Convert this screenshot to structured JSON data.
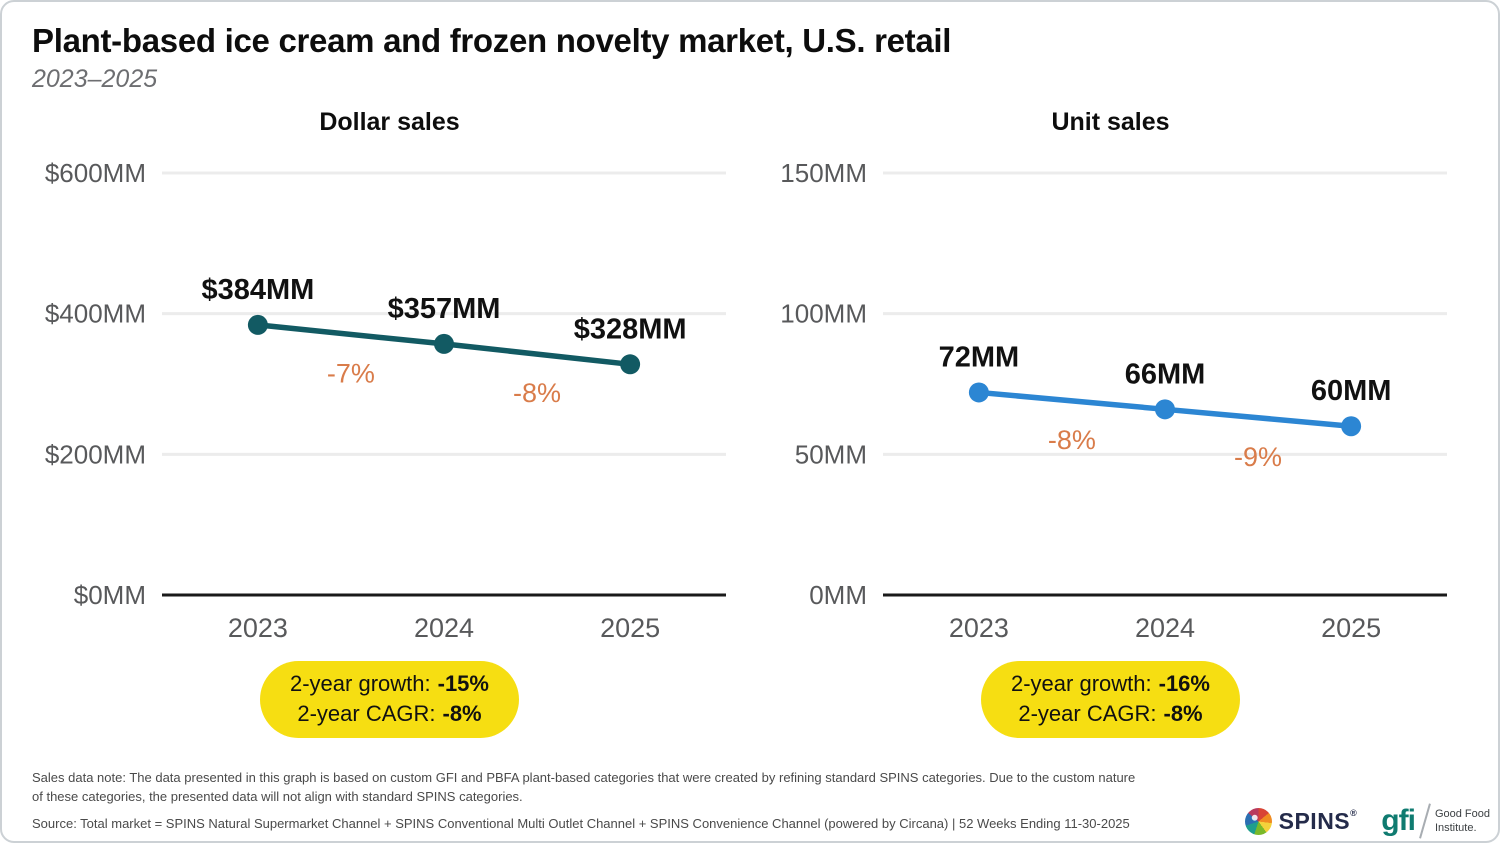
{
  "header": {
    "title": "Plant-based ice cream and frozen novelty market, U.S. retail",
    "subtitle": "2023–2025"
  },
  "colors": {
    "teal_line": "#125A63",
    "blue_line": "#2C86D3",
    "pct_orange": "#D97C4A",
    "badge_yellow": "#F6DE12",
    "axis": "#1a1a1a",
    "grid": "#ececec",
    "tick_text": "#58595b",
    "data_label": "#111111"
  },
  "chart_data": [
    {
      "type": "line",
      "title": "Dollar sales",
      "x": [
        "2023",
        "2024",
        "2025"
      ],
      "values": [
        384,
        357,
        328
      ],
      "point_labels": [
        "$384MM",
        "$357MM",
        "$328MM"
      ],
      "segment_change_labels": [
        "-7%",
        "-8%"
      ],
      "xlabel": "",
      "ylabel": "",
      "ylim": [
        0,
        600
      ],
      "yticks": [
        0,
        200,
        400,
        600
      ],
      "ytick_labels": [
        "$0MM",
        "$200MM",
        "$400MM",
        "$600MM"
      ],
      "grid": true,
      "legend": "none",
      "line_color": "#125A63",
      "summary": {
        "growth_label": "2-year growth:",
        "growth_value": "-15%",
        "cagr_label": "2-year CAGR:",
        "cagr_value": "-8%"
      }
    },
    {
      "type": "line",
      "title": "Unit sales",
      "x": [
        "2023",
        "2024",
        "2025"
      ],
      "values": [
        72,
        66,
        60
      ],
      "point_labels": [
        "72MM",
        "66MM",
        "60MM"
      ],
      "segment_change_labels": [
        "-8%",
        "-9%"
      ],
      "xlabel": "",
      "ylabel": "",
      "ylim": [
        0,
        150
      ],
      "yticks": [
        0,
        50,
        100,
        150
      ],
      "ytick_labels": [
        "0MM",
        "50MM",
        "100MM",
        "150MM"
      ],
      "grid": true,
      "legend": "none",
      "line_color": "#2C86D3",
      "summary": {
        "growth_label": "2-year growth:",
        "growth_value": "-16%",
        "cagr_label": "2-year CAGR:",
        "cagr_value": "-8%"
      }
    }
  ],
  "footer": {
    "note": "Sales data note: The data presented in this graph is based on custom GFI and PBFA plant-based categories that were created by refining standard SPINS categories. Due to the custom nature of these categories, the presented data will not align with standard SPINS categories.",
    "source": "Source: Total market = SPINS Natural Supermarket Channel + SPINS Conventional Multi Outlet Channel + SPINS Convenience Channel (powered by Circana) | 52 Weeks Ending 11-30-2025",
    "logos": {
      "spins_word": "SPINS",
      "spins_reg": "®",
      "gfi_word": "gfi",
      "gfi_name_line1": "Good Food",
      "gfi_name_line2": "Institute."
    }
  }
}
